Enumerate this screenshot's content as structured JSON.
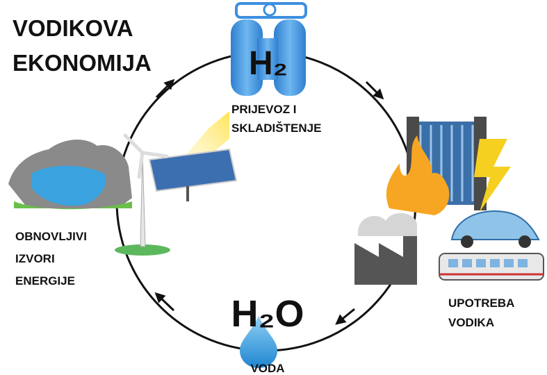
{
  "title": {
    "lines": [
      "VODIKOVA",
      "EKONOMIJA"
    ]
  },
  "nodes": [
    {
      "formula": "H₂",
      "label": [
        "PRIJEVOZ I",
        "SKLADIŠTENJE"
      ]
    },
    {
      "label": [
        "UPOTREBA",
        "VODIKA"
      ]
    },
    {
      "formula": "H₂O",
      "label": [
        "VODA"
      ]
    },
    {
      "label": [
        "OBNOVLJIVI",
        "IZVORI",
        "ENERGIJE"
      ]
    }
  ]
}
